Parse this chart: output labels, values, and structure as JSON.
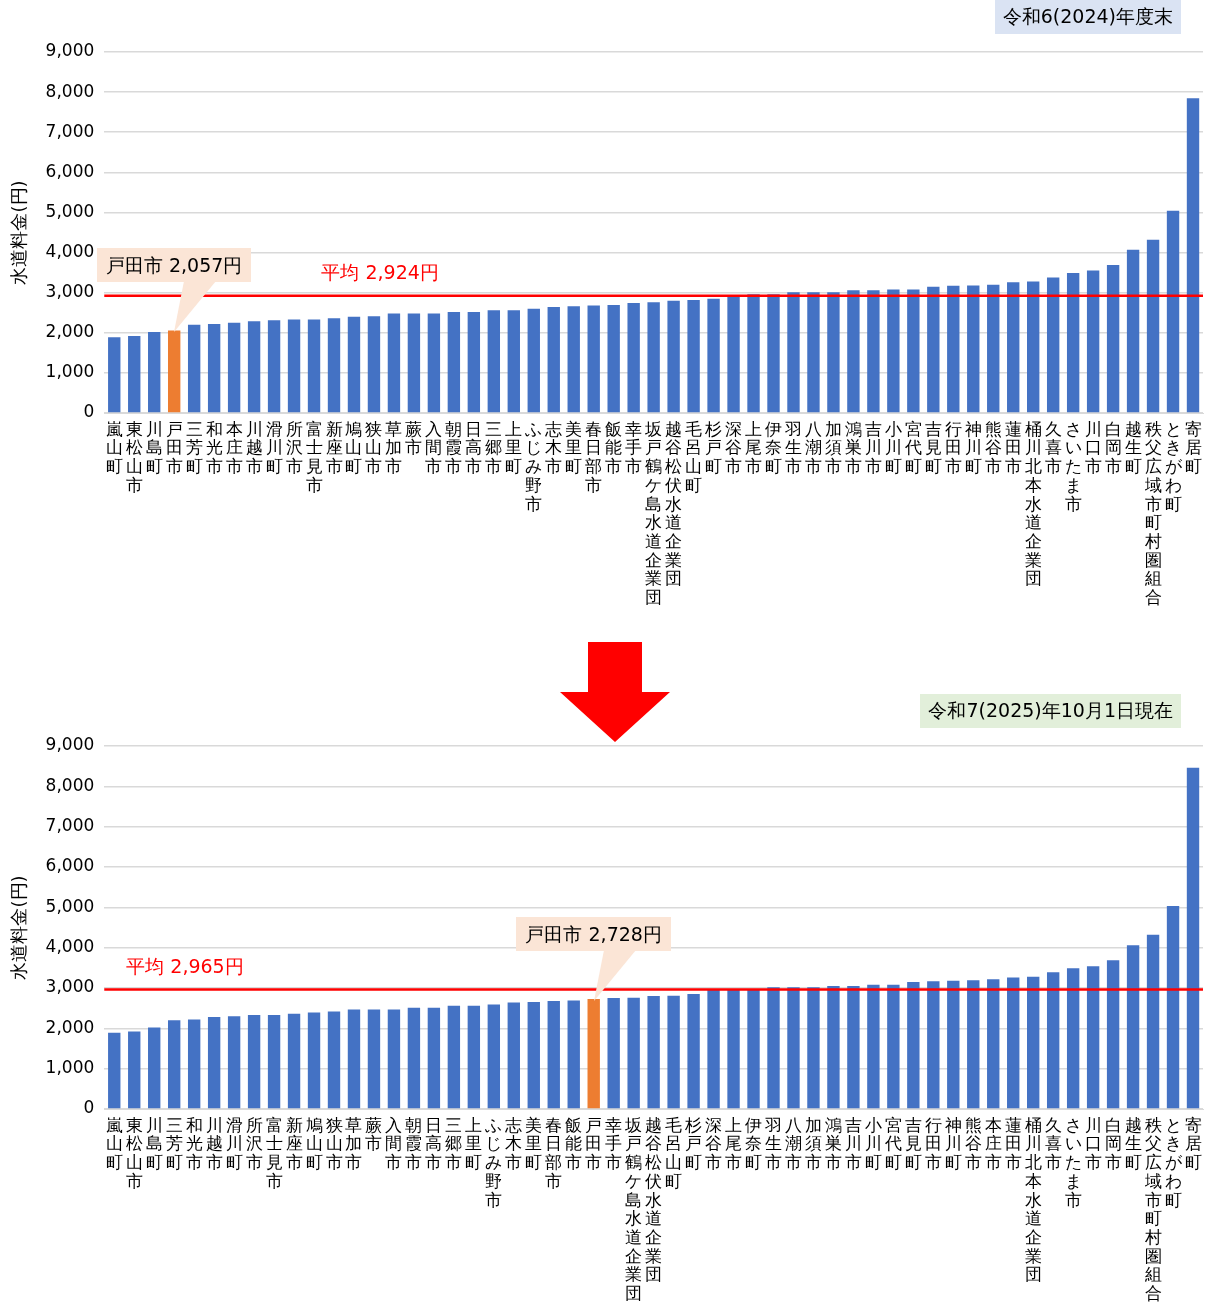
{
  "chart_data": [
    {
      "type": "bar",
      "title": "令和6(2024)年度末",
      "ylabel": "水道料金(円)",
      "categories": [
        "嵐山町",
        "東松山市",
        "川島町",
        "戸田市",
        "三芳町",
        "和光市",
        "本庄市",
        "川越市",
        "滑川町",
        "所沢市",
        "富士見市",
        "新座市",
        "鳩山町",
        "狭山市",
        "草加市",
        "蕨市",
        "入間市",
        "朝霞市",
        "日高市",
        "三郷市",
        "上里町",
        "ふじみ野市",
        "志木市",
        "美里町",
        "春日部市",
        "飯能市",
        "幸手市",
        "坂戸鶴ケ島水道企業団",
        "越谷松伏水道企業団",
        "毛呂山町",
        "杉戸町",
        "深谷市",
        "上尾市",
        "伊奈町",
        "羽生市",
        "八潮市",
        "加須市",
        "鴻巣市",
        "吉川市",
        "小川町",
        "宮代町",
        "吉見町",
        "行田市",
        "神川町",
        "熊谷市",
        "蓮田市",
        "桶川北本水道企業団",
        "久喜市",
        "さいたま市",
        "川口市",
        "白岡市",
        "越生町",
        "秩父広域市町村圏組合",
        "ときがわ町",
        "寄居町"
      ],
      "values": [
        1890,
        1920,
        2020,
        2057,
        2200,
        2220,
        2250,
        2290,
        2310,
        2330,
        2330,
        2360,
        2400,
        2410,
        2480,
        2480,
        2480,
        2520,
        2520,
        2560,
        2560,
        2600,
        2640,
        2660,
        2680,
        2690,
        2740,
        2760,
        2800,
        2820,
        2850,
        2940,
        2960,
        2960,
        3010,
        3010,
        3010,
        3060,
        3060,
        3080,
        3080,
        3150,
        3170,
        3180,
        3200,
        3260,
        3280,
        3380,
        3490,
        3550,
        3690,
        4070,
        4320,
        5040,
        7850
      ],
      "colors": [
        "#4472c4",
        "#4472c4",
        "#4472c4",
        "#ed7d31",
        "#4472c4",
        "#4472c4",
        "#4472c4",
        "#4472c4",
        "#4472c4",
        "#4472c4",
        "#4472c4",
        "#4472c4",
        "#4472c4",
        "#4472c4",
        "#4472c4",
        "#4472c4",
        "#4472c4",
        "#4472c4",
        "#4472c4",
        "#4472c4",
        "#4472c4",
        "#4472c4",
        "#4472c4",
        "#4472c4",
        "#4472c4",
        "#4472c4",
        "#4472c4",
        "#4472c4",
        "#4472c4",
        "#4472c4",
        "#4472c4",
        "#4472c4",
        "#4472c4",
        "#4472c4",
        "#4472c4",
        "#4472c4",
        "#4472c4",
        "#4472c4",
        "#4472c4",
        "#4472c4",
        "#4472c4",
        "#4472c4",
        "#4472c4",
        "#4472c4",
        "#4472c4",
        "#4472c4",
        "#4472c4",
        "#4472c4",
        "#4472c4",
        "#4472c4",
        "#4472c4",
        "#4472c4",
        "#4472c4",
        "#4472c4",
        "#4472c4"
      ],
      "ylim": [
        0,
        9000
      ],
      "yticks": [
        0,
        {
          "value": 1000,
          "label": "1,000"
        },
        {
          "value": 2000,
          "label": "2,000"
        },
        {
          "value": 3000,
          "label": "3,000"
        },
        {
          "value": 4000,
          "label": "4,000"
        },
        {
          "value": 5000,
          "label": "5,000"
        },
        {
          "value": 6000,
          "label": "6,000"
        },
        {
          "value": 7000,
          "label": "7,000"
        },
        {
          "value": 8000,
          "label": "8,000"
        },
        {
          "value": 9000,
          "label": "9,000"
        }
      ],
      "grid": "y",
      "ref_lines": [
        {
          "axis": "y",
          "value": 2924,
          "label": "平均 2,924円",
          "color": "#ff0000"
        }
      ],
      "annotations": [
        {
          "text": "戸田市 2,057円",
          "x": "戸田市",
          "y": 2057
        }
      ]
    },
    {
      "type": "bar",
      "title": "令和7(2025)年10月1日現在",
      "ylabel": "水道料金(円)",
      "categories": [
        "嵐山町",
        "東松山市",
        "川島町",
        "三芳町",
        "和光市",
        "川越市",
        "滑川町",
        "所沢市",
        "富士見市",
        "新座市",
        "鳩山町",
        "狭山市",
        "草加市",
        "蕨市",
        "入間市",
        "朝霞市",
        "日高市",
        "三郷市",
        "上里町",
        "ふじみ野市",
        "志木市",
        "美里町",
        "春日部市",
        "飯能市",
        "戸田市",
        "幸手市",
        "坂戸鶴ケ島水道企業団",
        "越谷松伏水道企業団",
        "毛呂山町",
        "杉戸町",
        "深谷市",
        "上尾市",
        "伊奈町",
        "羽生市",
        "八潮市",
        "加須市",
        "鴻巣市",
        "吉川市",
        "小川町",
        "宮代町",
        "吉見町",
        "行田市",
        "神川町",
        "熊谷市",
        "本庄市",
        "蓮田市",
        "桶川北本水道企業団",
        "久喜市",
        "さいたま市",
        "川口市",
        "白岡市",
        "越生町",
        "秩父広域市町村圏組合",
        "ときがわ町",
        "寄居町"
      ],
      "values": [
        1890,
        1920,
        2020,
        2200,
        2220,
        2280,
        2300,
        2330,
        2330,
        2360,
        2390,
        2420,
        2470,
        2470,
        2470,
        2510,
        2510,
        2560,
        2560,
        2590,
        2640,
        2650,
        2680,
        2690,
        2728,
        2750,
        2760,
        2800,
        2810,
        2850,
        2950,
        2950,
        2950,
        3020,
        3020,
        3020,
        3050,
        3050,
        3080,
        3080,
        3150,
        3170,
        3180,
        3190,
        3220,
        3260,
        3280,
        3390,
        3490,
        3540,
        3690,
        4060,
        4320,
        5030,
        8460
      ],
      "colors": [
        "#4472c4",
        "#4472c4",
        "#4472c4",
        "#4472c4",
        "#4472c4",
        "#4472c4",
        "#4472c4",
        "#4472c4",
        "#4472c4",
        "#4472c4",
        "#4472c4",
        "#4472c4",
        "#4472c4",
        "#4472c4",
        "#4472c4",
        "#4472c4",
        "#4472c4",
        "#4472c4",
        "#4472c4",
        "#4472c4",
        "#4472c4",
        "#4472c4",
        "#4472c4",
        "#4472c4",
        "#ed7d31",
        "#4472c4",
        "#4472c4",
        "#4472c4",
        "#4472c4",
        "#4472c4",
        "#4472c4",
        "#4472c4",
        "#4472c4",
        "#4472c4",
        "#4472c4",
        "#4472c4",
        "#4472c4",
        "#4472c4",
        "#4472c4",
        "#4472c4",
        "#4472c4",
        "#4472c4",
        "#4472c4",
        "#4472c4",
        "#4472c4",
        "#4472c4",
        "#4472c4",
        "#4472c4",
        "#4472c4",
        "#4472c4",
        "#4472c4",
        "#4472c4",
        "#4472c4",
        "#4472c4",
        "#4472c4"
      ],
      "ylim": [
        0,
        9000
      ],
      "yticks": [
        0,
        {
          "value": 1000,
          "label": "1,000"
        },
        {
          "value": 2000,
          "label": "2,000"
        },
        {
          "value": 3000,
          "label": "3,000"
        },
        {
          "value": 4000,
          "label": "4,000"
        },
        {
          "value": 5000,
          "label": "5,000"
        },
        {
          "value": 6000,
          "label": "6,000"
        },
        {
          "value": 7000,
          "label": "7,000"
        },
        {
          "value": 8000,
          "label": "8,000"
        },
        {
          "value": 9000,
          "label": "9,000"
        }
      ],
      "grid": "y",
      "ref_lines": [
        {
          "axis": "y",
          "value": 2965,
          "label": "平均 2,965円",
          "color": "#ff0000"
        }
      ],
      "annotations": [
        {
          "text": "戸田市 2,728円",
          "x": "戸田市",
          "y": 2728
        }
      ]
    }
  ]
}
